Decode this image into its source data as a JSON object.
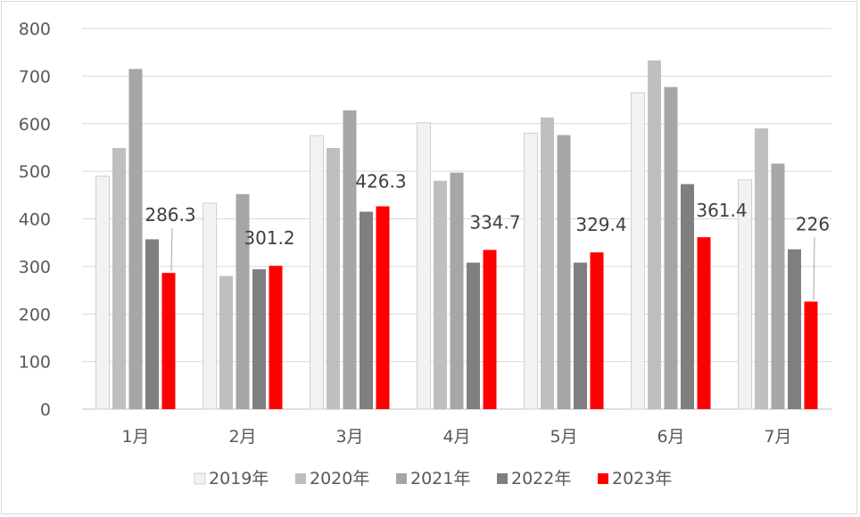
{
  "chart_data": {
    "type": "bar",
    "categories": [
      "1月",
      "2月",
      "3月",
      "4月",
      "5月",
      "6月",
      "7月"
    ],
    "series": [
      {
        "name": "2019年",
        "color": "#f2f2f2",
        "stroke": "#d0d0d0",
        "values": [
          490,
          433,
          575,
          602,
          580,
          665,
          482
        ]
      },
      {
        "name": "2020年",
        "color": "#bfbfbf",
        "values": [
          549,
          280,
          549,
          480,
          613,
          733,
          590
        ]
      },
      {
        "name": "2021年",
        "color": "#a6a6a6",
        "values": [
          715,
          452,
          628,
          497,
          576,
          677,
          516
        ]
      },
      {
        "name": "2022年",
        "color": "#7f7f7f",
        "values": [
          357,
          294,
          415,
          308,
          308,
          473,
          336
        ]
      },
      {
        "name": "2023年",
        "color": "#ff0000",
        "values": [
          286.3,
          301.2,
          426.3,
          334.7,
          329.4,
          361.4,
          226
        ]
      }
    ],
    "data_labels": {
      "series": "2023年",
      "texts": [
        "286.3",
        "301.2",
        "426.3",
        "334.7",
        "329.4",
        "361.4",
        "226"
      ]
    },
    "yticks": [
      "0",
      "100",
      "200",
      "300",
      "400",
      "500",
      "600",
      "700",
      "800"
    ],
    "ylim": [
      0,
      800
    ],
    "grid": true,
    "legend_position": "bottom"
  }
}
